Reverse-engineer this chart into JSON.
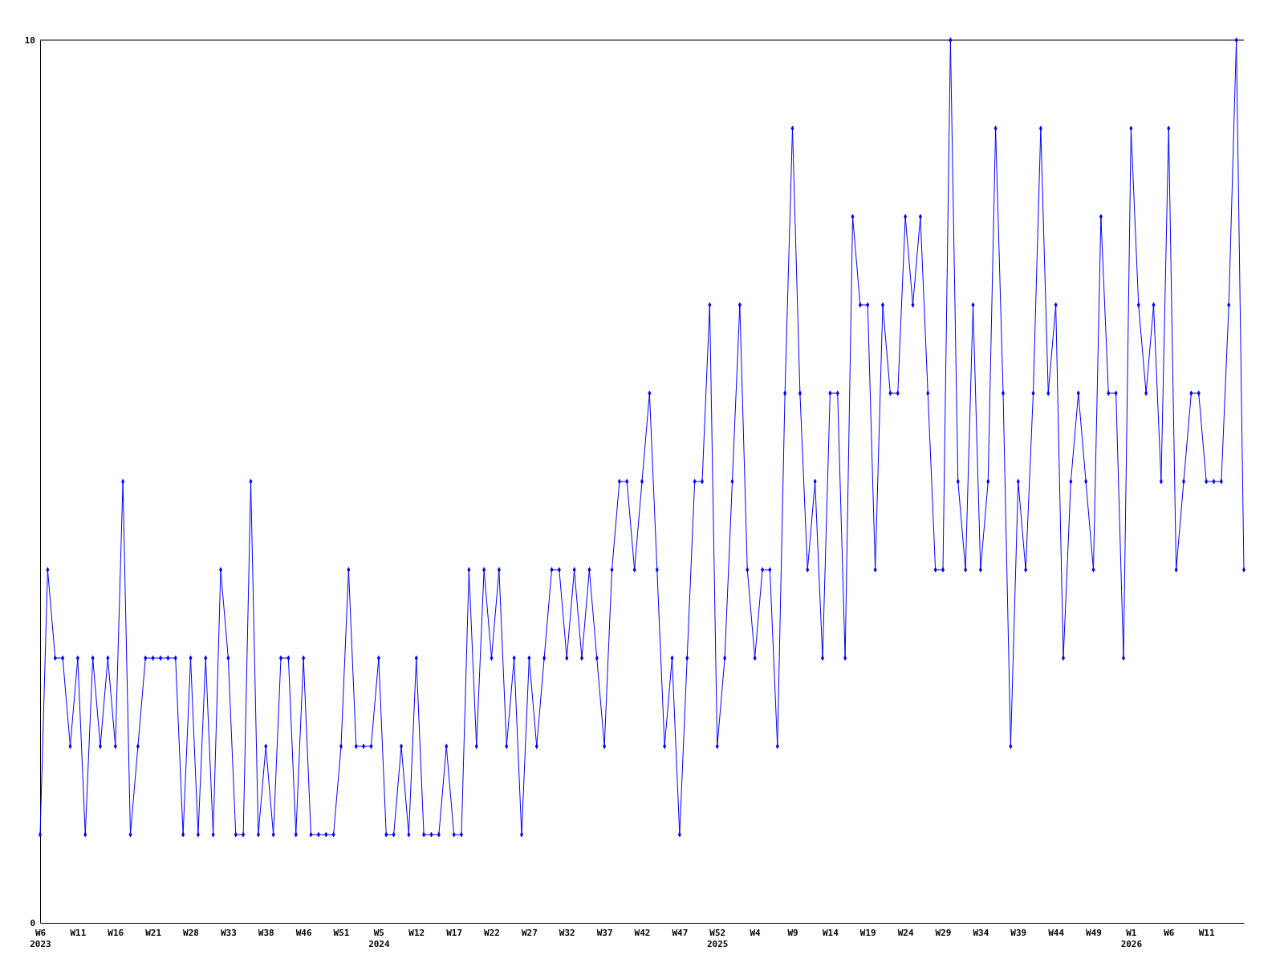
{
  "chart_data": {
    "type": "line",
    "categories": [
      "W6\n2023",
      null,
      null,
      null,
      null,
      "W11",
      null,
      null,
      null,
      null,
      "W16",
      null,
      null,
      null,
      null,
      "W21",
      null,
      null,
      null,
      null,
      "W28",
      null,
      null,
      null,
      null,
      "W33",
      null,
      null,
      null,
      null,
      "W38",
      null,
      null,
      null,
      null,
      "W46",
      null,
      null,
      null,
      null,
      "W51",
      null,
      null,
      null,
      null,
      "W5\n2024",
      null,
      null,
      null,
      null,
      "W12",
      null,
      null,
      null,
      null,
      "W17",
      null,
      null,
      null,
      null,
      "W22",
      null,
      null,
      null,
      null,
      "W27",
      null,
      null,
      null,
      null,
      "W32",
      null,
      null,
      null,
      null,
      "W37",
      null,
      null,
      null,
      null,
      "W42",
      null,
      null,
      null,
      null,
      "W47",
      null,
      null,
      null,
      null,
      "W52\n2025",
      null,
      null,
      null,
      null,
      "W4",
      null,
      null,
      null,
      null,
      "W9",
      null,
      null,
      null,
      null,
      "W14",
      null,
      null,
      null,
      null,
      "W19",
      null,
      null,
      null,
      null,
      "W24",
      null,
      null,
      null,
      null,
      "W29",
      null,
      null,
      null,
      null,
      "W34",
      null,
      null,
      null,
      null,
      "W39",
      null,
      null,
      null,
      null,
      "W44",
      null,
      null,
      null,
      null,
      "W49",
      null,
      null,
      null,
      null,
      "W1\n2026",
      null,
      null,
      null,
      null,
      "W6",
      null,
      null,
      null,
      null,
      "W11",
      null,
      null,
      null,
      null,
      null
    ],
    "series": [
      {
        "color": "#0000ff",
        "values": [
          1,
          4,
          3,
          3,
          2,
          3,
          1,
          3,
          2,
          3,
          2,
          5,
          1,
          2,
          3,
          3,
          3,
          3,
          3,
          1,
          3,
          1,
          3,
          1,
          4,
          3,
          1,
          1,
          5,
          1,
          2,
          1,
          3,
          3,
          1,
          3,
          1,
          1,
          1,
          1,
          2,
          4,
          2,
          2,
          2,
          3,
          1,
          1,
          2,
          1,
          3,
          1,
          1,
          1,
          2,
          1,
          1,
          4,
          2,
          4,
          3,
          4,
          2,
          3,
          1,
          3,
          2,
          3,
          4,
          4,
          3,
          4,
          3,
          4,
          3,
          2,
          4,
          5,
          5,
          4,
          5,
          6,
          4,
          2,
          3,
          1,
          3,
          5,
          5,
          7,
          2,
          3,
          5,
          7,
          4,
          3,
          4,
          4,
          2,
          6,
          9,
          6,
          4,
          5,
          3,
          6,
          6,
          3,
          8,
          7,
          7,
          4,
          7,
          6,
          6,
          8,
          7,
          8,
          6,
          4,
          4,
          10,
          5,
          4,
          7,
          4,
          5,
          9,
          6,
          2,
          5,
          4,
          6,
          9,
          6,
          7,
          3,
          5,
          6,
          5,
          4,
          8,
          6,
          6,
          3,
          9,
          7,
          6,
          7,
          5,
          9,
          4,
          5,
          6,
          6,
          5,
          5,
          5,
          7,
          10,
          4
        ]
      }
    ],
    "ylim": [
      0,
      10
    ],
    "yticks": [
      0,
      10
    ],
    "marker": "diamond"
  }
}
